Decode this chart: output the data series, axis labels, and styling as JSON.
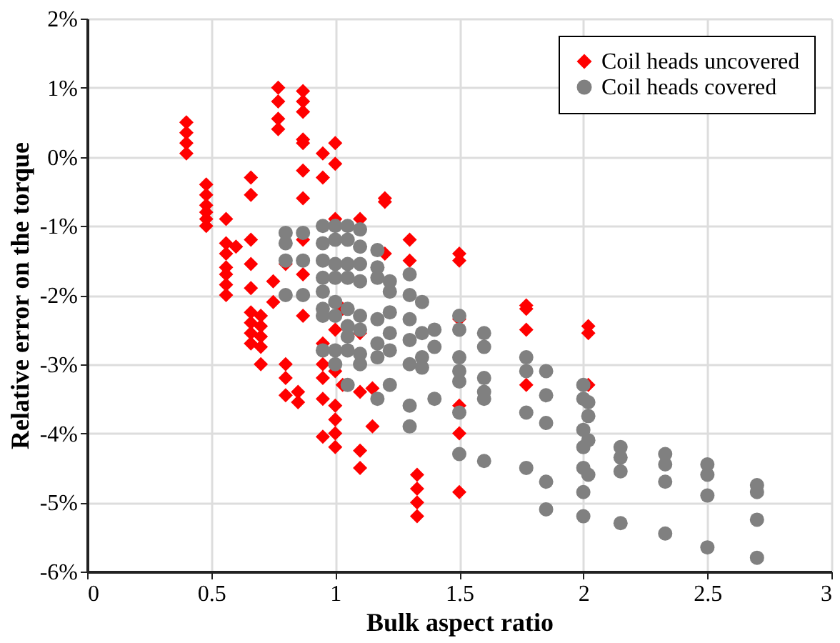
{
  "chart_data": {
    "type": "scatter",
    "xlabel": "Bulk aspect ratio",
    "ylabel": "Relative error on the torque",
    "xlim": [
      0,
      3
    ],
    "ylim": [
      -6,
      2
    ],
    "xticks": [
      0,
      0.5,
      1,
      1.5,
      2,
      2.5,
      3
    ],
    "yticks": [
      {
        "value": -6,
        "label": "-6%"
      },
      {
        "value": -5,
        "label": "-5%"
      },
      {
        "value": -4,
        "label": "-4%"
      },
      {
        "value": -3,
        "label": "-3%"
      },
      {
        "value": -2,
        "label": "-2%"
      },
      {
        "value": -1,
        "label": "-1%"
      },
      {
        "value": 0,
        "label": "0%"
      },
      {
        "value": 1,
        "label": "1%"
      },
      {
        "value": 2,
        "label": "2%"
      }
    ],
    "grid": true,
    "legend": "top right",
    "series": [
      {
        "name": "Coil heads uncovered",
        "color": "#ff0000",
        "marker": "diamond",
        "x": [
          0.4,
          0.4,
          0.4,
          0.4,
          0.48,
          0.48,
          0.48,
          0.48,
          0.48,
          0.48,
          0.56,
          0.56,
          0.56,
          0.56,
          0.56,
          0.56,
          0.56,
          0.6,
          0.66,
          0.66,
          0.66,
          0.66,
          0.66,
          0.66,
          0.66,
          0.66,
          0.66,
          0.7,
          0.7,
          0.7,
          0.7,
          0.7,
          0.75,
          0.75,
          0.77,
          0.77,
          0.77,
          0.77,
          0.8,
          0.8,
          0.8,
          0.8,
          0.85,
          0.85,
          0.87,
          0.87,
          0.87,
          0.87,
          0.87,
          0.87,
          0.87,
          0.87,
          0.87,
          0.87,
          0.95,
          0.95,
          0.95,
          0.95,
          0.95,
          0.95,
          0.95,
          1.0,
          1.0,
          1.0,
          1.0,
          1.0,
          1.0,
          1.0,
          1.0,
          1.0,
          1.03,
          1.03,
          1.1,
          1.1,
          1.1,
          1.1,
          1.1,
          1.15,
          1.15,
          1.2,
          1.2,
          1.2,
          1.3,
          1.3,
          1.33,
          1.33,
          1.33,
          1.33,
          1.5,
          1.5,
          1.5,
          1.5,
          1.5,
          1.5,
          1.77,
          1.77,
          1.77,
          1.77,
          2.02,
          2.02,
          2.02
        ],
        "values": [
          0.5,
          0.35,
          0.2,
          0.05,
          -0.4,
          -0.55,
          -0.7,
          -0.8,
          -0.9,
          -1.0,
          -0.9,
          -1.25,
          -1.4,
          -1.6,
          -1.7,
          -1.85,
          -2.0,
          -1.3,
          -0.3,
          -0.55,
          -1.2,
          -1.55,
          -1.9,
          -2.25,
          -2.4,
          -2.55,
          -2.7,
          -2.3,
          -2.45,
          -2.6,
          -2.75,
          -3.0,
          -1.8,
          -2.1,
          1.0,
          0.8,
          0.55,
          0.4,
          -3.0,
          -3.2,
          -3.45,
          -1.55,
          -3.4,
          -3.55,
          0.95,
          0.8,
          0.65,
          0.25,
          0.2,
          -0.2,
          -0.6,
          -1.2,
          -1.7,
          -2.3,
          0.05,
          -0.3,
          -2.7,
          -3.0,
          -3.2,
          -3.5,
          -4.05,
          0.2,
          -0.1,
          -0.9,
          -2.5,
          -3.1,
          -3.6,
          -3.8,
          -4.2,
          -4.0,
          -2.2,
          -3.3,
          -0.9,
          -2.55,
          -3.4,
          -4.25,
          -4.5,
          -3.35,
          -3.9,
          -0.6,
          -0.65,
          -1.4,
          -1.2,
          -1.5,
          -4.6,
          -4.8,
          -5.0,
          -5.2,
          -1.4,
          -1.5,
          -2.35,
          -3.6,
          -4.0,
          -4.85,
          -2.15,
          -2.2,
          -2.5,
          -3.3,
          -2.45,
          -2.55,
          -3.3
        ]
      },
      {
        "name": "Coil heads covered",
        "color": "#808080",
        "marker": "circle",
        "x": [
          0.8,
          0.8,
          0.8,
          0.8,
          0.87,
          0.87,
          0.87,
          0.95,
          0.95,
          0.95,
          0.95,
          0.95,
          0.95,
          0.95,
          0.95,
          1.0,
          1.0,
          1.0,
          1.0,
          1.0,
          1.0,
          1.0,
          1.0,
          1.05,
          1.05,
          1.05,
          1.05,
          1.05,
          1.05,
          1.05,
          1.05,
          1.05,
          1.1,
          1.1,
          1.1,
          1.1,
          1.1,
          1.1,
          1.1,
          1.1,
          1.17,
          1.17,
          1.17,
          1.17,
          1.17,
          1.17,
          1.17,
          1.22,
          1.22,
          1.22,
          1.22,
          1.22,
          1.22,
          1.3,
          1.3,
          1.3,
          1.3,
          1.3,
          1.3,
          1.3,
          1.35,
          1.35,
          1.35,
          1.35,
          1.4,
          1.4,
          1.4,
          1.5,
          1.5,
          1.5,
          1.5,
          1.5,
          1.5,
          1.5,
          1.6,
          1.6,
          1.6,
          1.6,
          1.6,
          1.6,
          1.77,
          1.77,
          1.77,
          1.77,
          1.85,
          1.85,
          1.85,
          1.85,
          1.85,
          2.0,
          2.0,
          2.0,
          2.0,
          2.0,
          2.0,
          2.0,
          2.02,
          2.02,
          2.02,
          2.02,
          2.15,
          2.15,
          2.15,
          2.15,
          2.33,
          2.33,
          2.33,
          2.33,
          2.5,
          2.5,
          2.5,
          2.5,
          2.7,
          2.7,
          2.7,
          2.7
        ],
        "values": [
          -1.1,
          -1.25,
          -1.5,
          -2.0,
          -1.1,
          -1.5,
          -2.0,
          -1.0,
          -1.25,
          -1.5,
          -1.75,
          -1.95,
          -2.2,
          -2.3,
          -2.8,
          -1.0,
          -1.2,
          -1.55,
          -1.75,
          -2.1,
          -2.3,
          -2.8,
          -3.0,
          -1.0,
          -1.2,
          -1.55,
          -1.75,
          -2.2,
          -2.45,
          -2.6,
          -2.8,
          -3.3,
          -1.05,
          -1.3,
          -1.55,
          -1.8,
          -2.3,
          -2.5,
          -2.85,
          -3.0,
          -1.35,
          -1.6,
          -1.75,
          -2.35,
          -2.7,
          -2.9,
          -3.5,
          -1.8,
          -1.95,
          -2.25,
          -2.55,
          -2.8,
          -3.3,
          -1.7,
          -2.0,
          -2.35,
          -2.65,
          -3.0,
          -3.6,
          -3.9,
          -2.1,
          -2.55,
          -2.9,
          -3.05,
          -2.5,
          -2.75,
          -3.5,
          -2.3,
          -2.5,
          -2.9,
          -3.1,
          -3.25,
          -3.7,
          -4.3,
          -2.55,
          -2.75,
          -3.2,
          -3.4,
          -3.5,
          -4.4,
          -2.9,
          -3.1,
          -3.7,
          -4.5,
          -3.1,
          -3.45,
          -3.85,
          -4.7,
          -5.1,
          -3.3,
          -3.5,
          -3.95,
          -4.2,
          -4.5,
          -4.85,
          -5.2,
          -3.55,
          -3.75,
          -4.1,
          -4.6,
          -4.2,
          -4.35,
          -4.55,
          -5.3,
          -4.3,
          -4.45,
          -4.7,
          -5.45,
          -4.45,
          -4.6,
          -4.9,
          -5.65,
          -4.75,
          -4.85,
          -5.25,
          -5.8
        ]
      }
    ]
  }
}
